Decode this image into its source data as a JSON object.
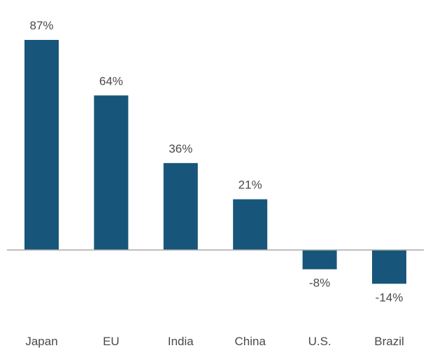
{
  "chart_data": {
    "type": "bar",
    "categories": [
      "Japan",
      "EU",
      "India",
      "China",
      "U.S.",
      "Brazil"
    ],
    "values": [
      87,
      64,
      36,
      21,
      -8,
      -14
    ],
    "value_labels": [
      "87%",
      "64%",
      "36%",
      "21%",
      "-8%",
      "-14%"
    ],
    "ylim": [
      -14,
      87
    ],
    "grid": false,
    "legend": "none",
    "bar_color": "#17567a",
    "axis_color": "#a8a8a8"
  }
}
